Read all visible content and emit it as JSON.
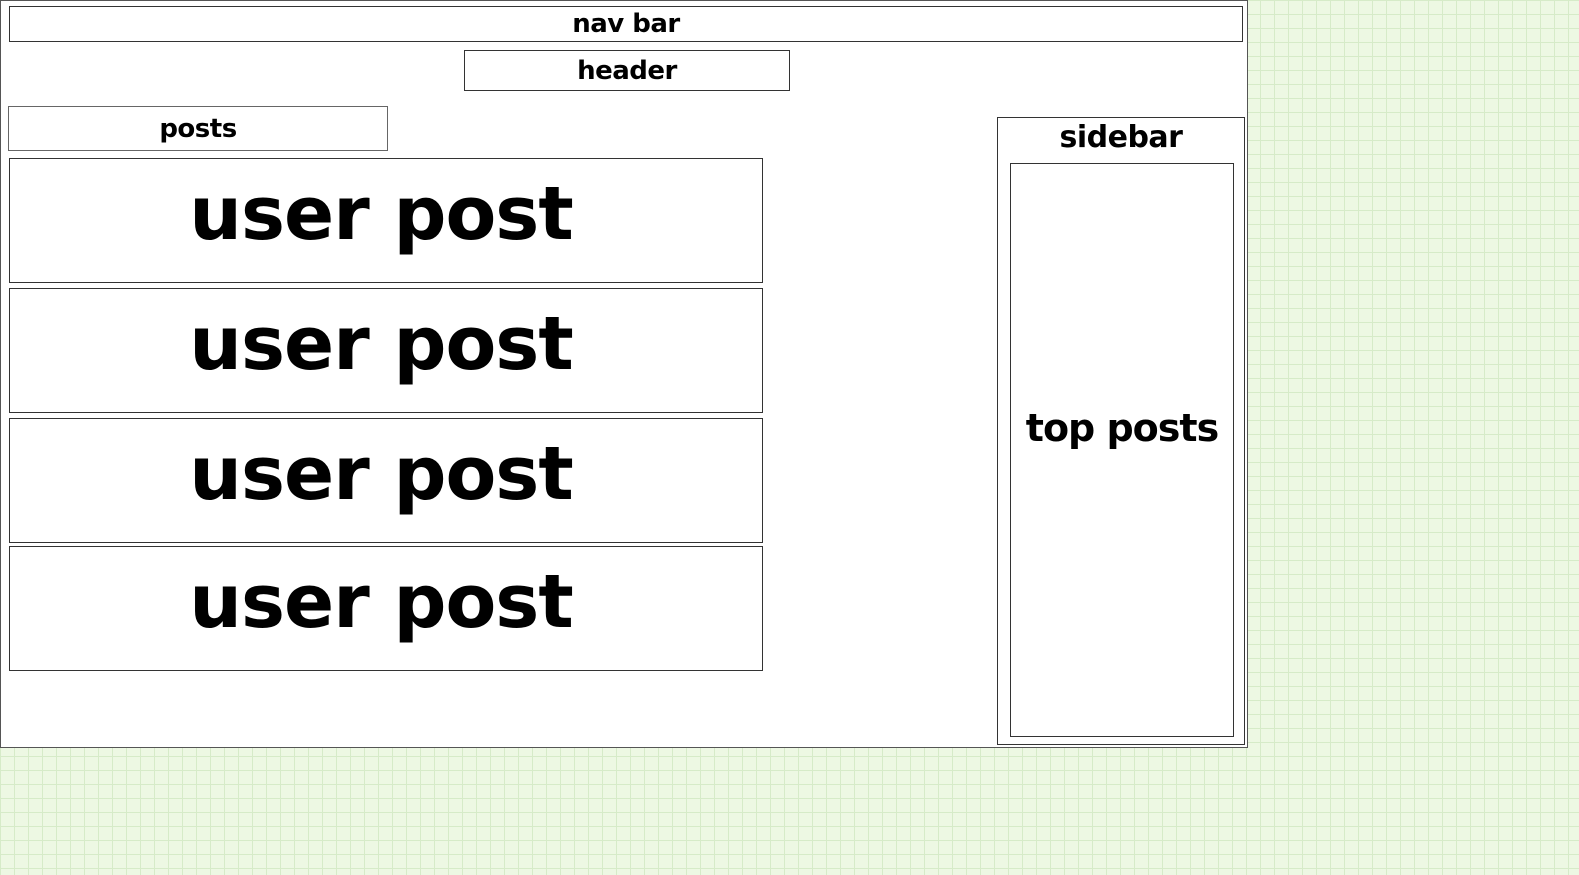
{
  "nav_bar": {
    "label": "nav bar"
  },
  "header": {
    "label": "header"
  },
  "posts": {
    "label": "posts",
    "items": [
      {
        "label": "user post"
      },
      {
        "label": "user post"
      },
      {
        "label": "user post"
      },
      {
        "label": "user post"
      }
    ]
  },
  "sidebar": {
    "label": "sidebar",
    "top_posts_label": "top posts"
  },
  "colors": {
    "background": "#edf8e3",
    "grid_lines": "#d6ebc8",
    "canvas": "#ffffff",
    "border": "#333333",
    "text": "#000000"
  }
}
